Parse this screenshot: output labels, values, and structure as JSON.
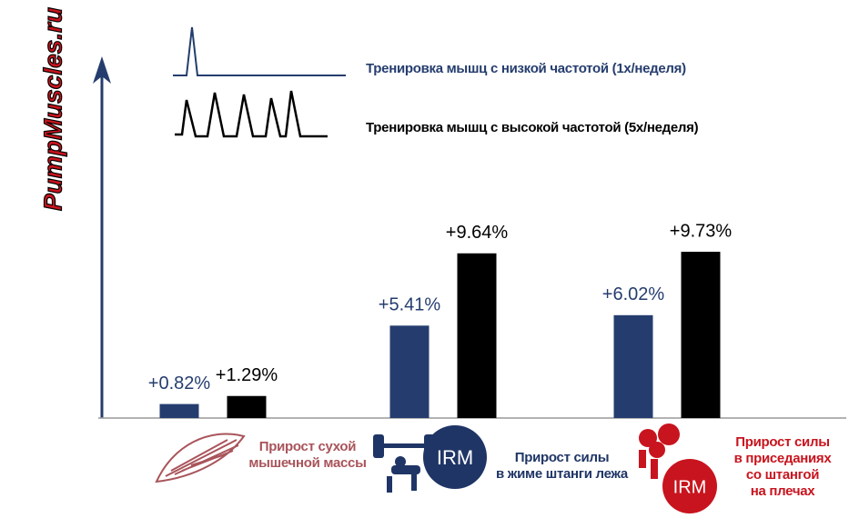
{
  "chart_data": {
    "type": "bar",
    "watermark": "PumpMuscles.ru",
    "categories": [
      "Прирост сухой\nмышечной массы",
      "Прирост силы\nв жиме штанги лежа",
      "Прирост силы\nв приседаниях\nсо штангой\nна плечах"
    ],
    "category_colors": [
      "#a9545b",
      "#1f3566",
      "#c8141e"
    ],
    "icon_labels": [
      "IRM",
      "IRM"
    ],
    "series": [
      {
        "name": "Тренировка мышц с низкой частотой (1х/неделя)",
        "color": "#253d6e",
        "values": [
          0.82,
          5.41,
          6.02
        ],
        "value_labels": [
          "+0.82%",
          "+5.41%",
          "+6.02%"
        ]
      },
      {
        "name": "Тренировка мышц с высокой частотой (5х/неделя)",
        "color": "#000000",
        "values": [
          1.29,
          9.64,
          9.73
        ],
        "value_labels": [
          "+1.29%",
          "+9.64%",
          "+9.73%"
        ]
      }
    ],
    "ylim": [
      0,
      20
    ]
  }
}
